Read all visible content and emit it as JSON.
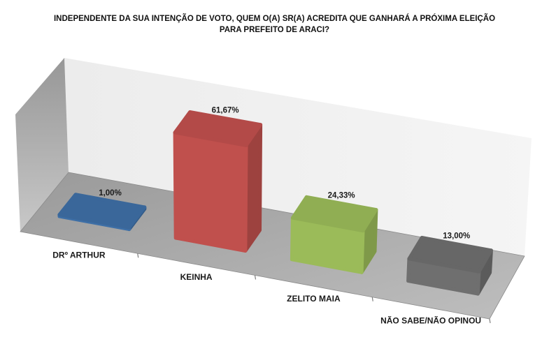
{
  "title": "INDEPENDENTE DA SUA INTENÇÃO DE VOTO, QUEM O(A) SR(A) ACREDITA QUE GANHARÁ A PRÓXIMA ELEIÇÃO PARA PREFEITO DE ARACI?",
  "chart_data": {
    "type": "bar",
    "variant": "3d-perspective",
    "title": "INDEPENDENTE DA SUA INTENÇÃO DE VOTO, QUEM O(A) SR(A) ACREDITA QUE GANHARÁ A PRÓXIMA ELEIÇÃO PARA PREFEITO DE ARACI?",
    "categories": [
      "DRº ARTHUR",
      "KEINHA",
      "ZELITO MAIA",
      "NÃO SABE/NÃO OPINOU"
    ],
    "values": [
      1.0,
      61.67,
      24.33,
      13.0
    ],
    "value_labels": [
      "1,00%",
      "61,67%",
      "24,33%",
      "13,00%"
    ],
    "bar_colors": [
      "#3E6FA6",
      "#C0504D",
      "#9BBB59",
      "#6F6F6F"
    ],
    "xlabel": "",
    "ylabel": "",
    "ylim": [
      0,
      70
    ],
    "grid": false,
    "legend": false,
    "label_color": "#1A1A1A",
    "axis": {
      "tick_color": "#7F7F7F"
    },
    "walls": {
      "back_left": "#ECECEC",
      "back_right": "#F5F5F5",
      "side_top": "#979797",
      "side_bottom": "#C8C8C8",
      "floor_back": "#9A9A9A",
      "floor_front": "#BEBEBE",
      "floor_edge": "#8A8A8A"
    }
  }
}
